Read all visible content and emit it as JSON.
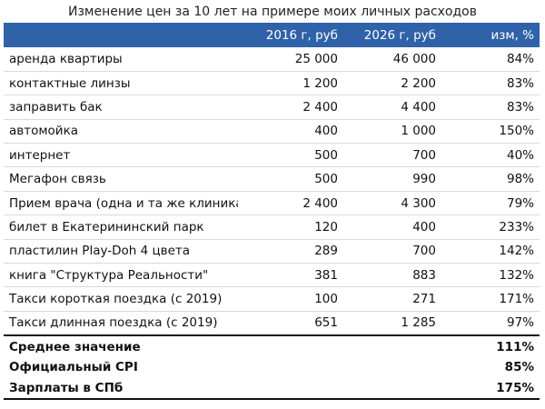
{
  "title": "Изменение цен за 10 лет на примере моих личных расходов",
  "header": {
    "name": "",
    "col2016": "2016 г, руб",
    "col2026": "2026 г, руб",
    "change": "изм, %"
  },
  "rows": [
    {
      "name": "аренда квартиры",
      "p2016": "25 000",
      "p2026": "46 000",
      "change": "84%"
    },
    {
      "name": "контактные линзы",
      "p2016": "1 200",
      "p2026": "2 200",
      "change": "83%"
    },
    {
      "name": "заправить бак",
      "p2016": "2 400",
      "p2026": "4 400",
      "change": "83%"
    },
    {
      "name": "автомойка",
      "p2016": "400",
      "p2026": "1 000",
      "change": "150%"
    },
    {
      "name": "интернет",
      "p2016": "500",
      "p2026": "700",
      "change": "40%"
    },
    {
      "name": "Мегафон связь",
      "p2016": "500",
      "p2026": "990",
      "change": "98%"
    },
    {
      "name": "Прием врача (одна и та же клиника)",
      "p2016": "2 400",
      "p2026": "4 300",
      "change": "79%"
    },
    {
      "name": "билет в Екатерининский парк",
      "p2016": "120",
      "p2026": "400",
      "change": "233%"
    },
    {
      "name": "пластилин Play-Doh 4 цвета",
      "p2016": "289",
      "p2026": "700",
      "change": "142%"
    },
    {
      "name": "книга \"Структура Реальности\"",
      "p2016": "381",
      "p2026": "883",
      "change": "132%"
    },
    {
      "name": "Такси короткая поездка (с 2019)",
      "p2016": "100",
      "p2026": "271",
      "change": "171%"
    },
    {
      "name": "Такси длинная поездка (с 2019)",
      "p2016": "651",
      "p2026": "1 285",
      "change": "97%"
    }
  ],
  "summary": [
    {
      "label": "Среднее значение",
      "value": "111%"
    },
    {
      "label": "Официальный CPI",
      "value": "85%"
    },
    {
      "label": "Зарплаты в СПб",
      "value": "175%"
    }
  ]
}
